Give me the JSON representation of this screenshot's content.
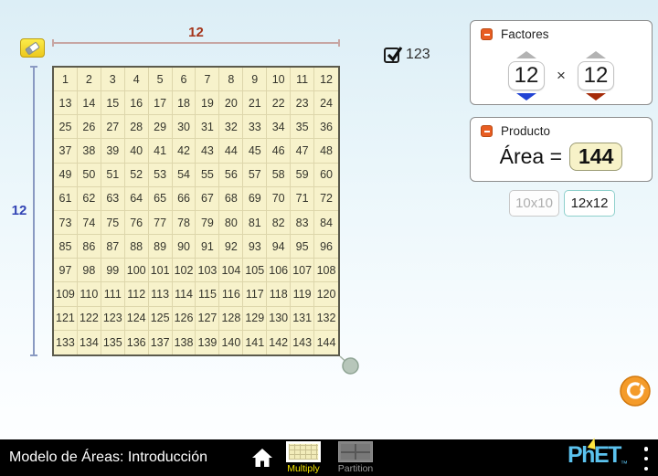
{
  "colors": {
    "background_top": "#dceef6",
    "grid_fill": "#f7f2cb",
    "grid_line": "#ddd6ab",
    "grid_border": "#5b5a4c",
    "horizontal_dimension": "#c7a6a3",
    "horizontal_label": "#a5361c",
    "vertical_dimension": "#8a9ac2",
    "vertical_label": "#3345b5",
    "collapse_button": "#e85d22",
    "factor_left_arrow": "#2244d4",
    "factor_right_arrow": "#a52b09",
    "selected_size_border": "#8fd0cc",
    "refresh_button": "#f49b2a",
    "tab_selected_label": "#f5e500",
    "logo_blue": "#5bc2ee"
  },
  "dimensions": {
    "h_label": "12",
    "v_label": "12"
  },
  "toolbar": {
    "checkbox_label": "123",
    "checkbox_checked": true
  },
  "grid": {
    "rows": [
      [
        1,
        2,
        3,
        4,
        5,
        6,
        7,
        8,
        9,
        10,
        11,
        12
      ],
      [
        13,
        14,
        15,
        16,
        17,
        18,
        19,
        20,
        21,
        22,
        23,
        24
      ],
      [
        25,
        26,
        27,
        28,
        29,
        30,
        31,
        32,
        33,
        34,
        35,
        36
      ],
      [
        37,
        38,
        39,
        40,
        41,
        42,
        43,
        44,
        45,
        46,
        47,
        48
      ],
      [
        49,
        50,
        51,
        52,
        53,
        54,
        55,
        56,
        57,
        58,
        59,
        60
      ],
      [
        61,
        62,
        63,
        64,
        65,
        66,
        67,
        68,
        69,
        70,
        71,
        72
      ],
      [
        73,
        74,
        75,
        76,
        77,
        78,
        79,
        80,
        81,
        82,
        83,
        84
      ],
      [
        85,
        86,
        87,
        88,
        89,
        90,
        91,
        92,
        93,
        94,
        95,
        96
      ],
      [
        97,
        98,
        99,
        100,
        101,
        102,
        103,
        104,
        105,
        106,
        107,
        108
      ],
      [
        109,
        110,
        111,
        112,
        113,
        114,
        115,
        116,
        117,
        118,
        119,
        120
      ],
      [
        121,
        122,
        123,
        124,
        125,
        126,
        127,
        128,
        129,
        130,
        131,
        132
      ],
      [
        133,
        134,
        135,
        136,
        137,
        138,
        139,
        140,
        141,
        142,
        143,
        144
      ]
    ]
  },
  "factores": {
    "title": "Factores",
    "left_value": "12",
    "operator": "×",
    "right_value": "12"
  },
  "producto": {
    "title": "Producto",
    "label": "Área =",
    "value": "144"
  },
  "size_buttons": {
    "small": "10x10",
    "small_selected": false,
    "large": "12x12",
    "large_selected": true
  },
  "navbar": {
    "title": "Modelo de Áreas: Introducción",
    "tabs": {
      "multiply": "Multiply",
      "partition": "Partition"
    },
    "logo_text": "PhET",
    "logo_tm": "™"
  }
}
